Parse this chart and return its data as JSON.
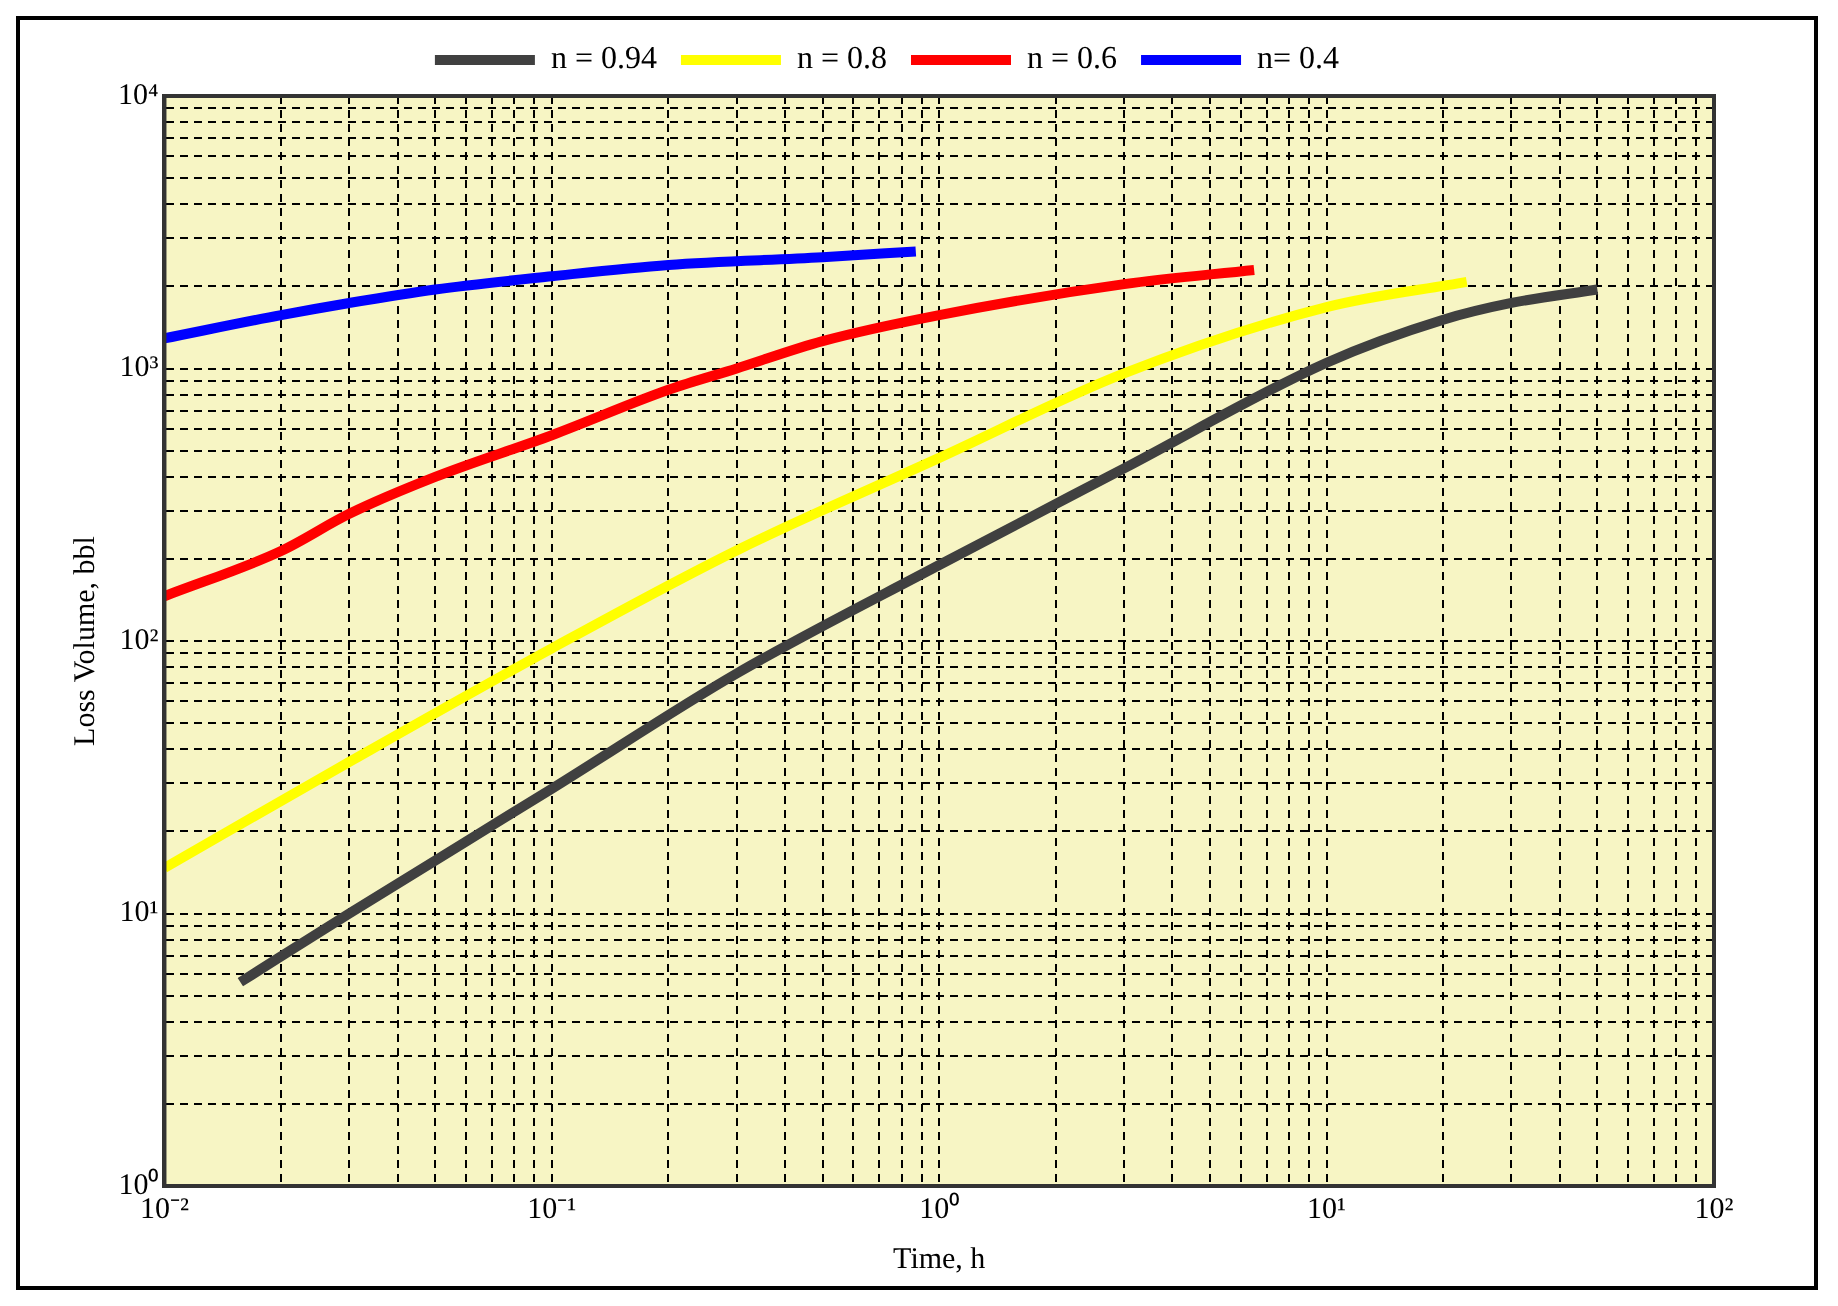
{
  "chart_data": {
    "type": "line",
    "xlabel": "Time, h",
    "ylabel": "Loss Volume, bbl",
    "log": "xy",
    "grid": true,
    "legend": "top",
    "marker": "none",
    "xlim": [
      0.01,
      100
    ],
    "ylim": [
      1,
      10000
    ],
    "xticks": [
      {
        "value": 0.01,
        "label": "10⁻²"
      },
      {
        "value": 0.02,
        "label": null
      },
      {
        "value": 0.03,
        "label": null
      },
      {
        "value": 0.04,
        "label": null
      },
      {
        "value": 0.05,
        "label": null
      },
      {
        "value": 0.06,
        "label": null
      },
      {
        "value": 0.07,
        "label": null
      },
      {
        "value": 0.08,
        "label": null
      },
      {
        "value": 0.09,
        "label": null
      },
      {
        "value": 0.1,
        "label": "10⁻¹"
      },
      {
        "value": 0.2,
        "label": null
      },
      {
        "value": 0.3,
        "label": null
      },
      {
        "value": 0.4,
        "label": null
      },
      {
        "value": 0.5,
        "label": null
      },
      {
        "value": 0.6,
        "label": null
      },
      {
        "value": 0.7,
        "label": null
      },
      {
        "value": 0.8,
        "label": null
      },
      {
        "value": 0.9,
        "label": null
      },
      {
        "value": 1,
        "label": "10⁰"
      },
      {
        "value": 2,
        "label": null
      },
      {
        "value": 3,
        "label": null
      },
      {
        "value": 4,
        "label": null
      },
      {
        "value": 5,
        "label": null
      },
      {
        "value": 6,
        "label": null
      },
      {
        "value": 7,
        "label": null
      },
      {
        "value": 8,
        "label": null
      },
      {
        "value": 9,
        "label": null
      },
      {
        "value": 10,
        "label": "10¹"
      },
      {
        "value": 20,
        "label": null
      },
      {
        "value": 30,
        "label": null
      },
      {
        "value": 40,
        "label": null
      },
      {
        "value": 50,
        "label": null
      },
      {
        "value": 60,
        "label": null
      },
      {
        "value": 70,
        "label": null
      },
      {
        "value": 80,
        "label": null
      },
      {
        "value": 90,
        "label": null
      },
      {
        "value": 100,
        "label": "10²"
      }
    ],
    "yticks": [
      {
        "value": 1,
        "label": "10⁰"
      },
      {
        "value": 2,
        "label": null
      },
      {
        "value": 3,
        "label": null
      },
      {
        "value": 4,
        "label": null
      },
      {
        "value": 5,
        "label": null
      },
      {
        "value": 6,
        "label": null
      },
      {
        "value": 7,
        "label": null
      },
      {
        "value": 8,
        "label": null
      },
      {
        "value": 9,
        "label": null
      },
      {
        "value": 10,
        "label": "10¹"
      },
      {
        "value": 20,
        "label": null
      },
      {
        "value": 30,
        "label": null
      },
      {
        "value": 40,
        "label": null
      },
      {
        "value": 50,
        "label": null
      },
      {
        "value": 60,
        "label": null
      },
      {
        "value": 70,
        "label": null
      },
      {
        "value": 80,
        "label": null
      },
      {
        "value": 90,
        "label": null
      },
      {
        "value": 100,
        "label": "10²"
      },
      {
        "value": 200,
        "label": null
      },
      {
        "value": 300,
        "label": null
      },
      {
        "value": 400,
        "label": null
      },
      {
        "value": 500,
        "label": null
      },
      {
        "value": 600,
        "label": null
      },
      {
        "value": 700,
        "label": null
      },
      {
        "value": 800,
        "label": null
      },
      {
        "value": 900,
        "label": null
      },
      {
        "value": 1000,
        "label": "10³"
      },
      {
        "value": 2000,
        "label": null
      },
      {
        "value": 3000,
        "label": null
      },
      {
        "value": 4000,
        "label": null
      },
      {
        "value": 5000,
        "label": null
      },
      {
        "value": 6000,
        "label": null
      },
      {
        "value": 7000,
        "label": null
      },
      {
        "value": 8000,
        "label": null
      },
      {
        "value": 9000,
        "label": null
      },
      {
        "value": 10000,
        "label": "10⁴"
      }
    ],
    "series": [
      {
        "name": "n = 0.94",
        "color": "#404040",
        "x": [
          0.0157,
          0.03,
          0.1,
          0.3,
          1,
          3,
          10,
          20,
          30,
          50
        ],
        "values": [
          5.6,
          10,
          28.7,
          76,
          190,
          430,
          1050,
          1510,
          1740,
          1950
        ]
      },
      {
        "name": "n = 0.8",
        "color": "#ffff00",
        "x": [
          0.01,
          0.03,
          0.1,
          0.3,
          1,
          3,
          10,
          23
        ],
        "values": [
          14.7,
          36,
          94,
          215,
          470,
          960,
          1680,
          2080
        ]
      },
      {
        "name": "n = 0.6",
        "color": "#ff0000",
        "x": [
          0.01,
          0.02,
          0.03,
          0.05,
          0.1,
          0.2,
          0.3,
          0.5,
          1,
          3,
          6.5
        ],
        "values": [
          146,
          214,
          293,
          400,
          569,
          835,
          1000,
          1260,
          1570,
          2040,
          2300
        ]
      },
      {
        "name": "n= 0.4",
        "color": "#0000ff",
        "x": [
          0.01,
          0.02,
          0.03,
          0.05,
          0.1,
          0.2,
          0.5,
          0.87
        ],
        "values": [
          1290,
          1570,
          1740,
          1950,
          2180,
          2400,
          2560,
          2690
        ]
      }
    ]
  }
}
